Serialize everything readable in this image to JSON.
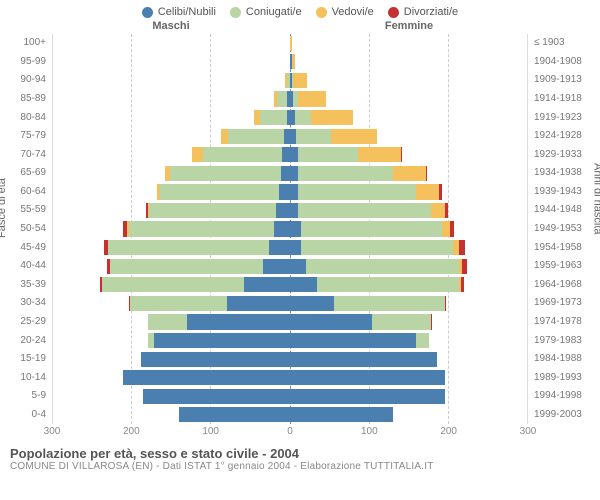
{
  "chart": {
    "type": "population-pyramid",
    "legend": [
      {
        "label": "Celibi/Nubili",
        "color": "#4a7fb0"
      },
      {
        "label": "Coniugati/e",
        "color": "#b9d4a5"
      },
      {
        "label": "Vedovi/e",
        "color": "#f5c15d"
      },
      {
        "label": "Divorziati/e",
        "color": "#c73030"
      }
    ],
    "header_left": "Maschi",
    "header_right": "Femmine",
    "yaxis_left_title": "Fasce di età",
    "yaxis_right_title": "Anni di nascita",
    "xmax": 300,
    "xticks": [
      300,
      200,
      100,
      0,
      100,
      200,
      300
    ],
    "age_labels": [
      "100+",
      "95-99",
      "90-94",
      "85-89",
      "80-84",
      "75-79",
      "70-74",
      "65-69",
      "60-64",
      "55-59",
      "50-54",
      "45-49",
      "40-44",
      "35-39",
      "30-34",
      "25-29",
      "20-24",
      "15-19",
      "10-14",
      "5-9",
      "0-4"
    ],
    "year_labels": [
      "≤ 1903",
      "1904-1908",
      "1909-1913",
      "1914-1918",
      "1919-1923",
      "1924-1928",
      "1929-1933",
      "1934-1938",
      "1939-1943",
      "1944-1948",
      "1949-1953",
      "1954-1958",
      "1959-1963",
      "1964-1968",
      "1969-1973",
      "1974-1978",
      "1979-1983",
      "1984-1988",
      "1989-1993",
      "1994-1998",
      "1999-2003"
    ],
    "rows": [
      {
        "m": {
          "c": 0,
          "s": 0,
          "v": 0,
          "d": 0
        },
        "f": {
          "c": 0,
          "s": 0,
          "v": 2,
          "d": 0
        }
      },
      {
        "m": {
          "c": 0,
          "s": 0,
          "v": 0,
          "d": 0
        },
        "f": {
          "c": 2,
          "s": 0,
          "v": 4,
          "d": 0
        }
      },
      {
        "m": {
          "c": 0,
          "s": 4,
          "v": 2,
          "d": 0
        },
        "f": {
          "c": 2,
          "s": 2,
          "v": 18,
          "d": 0
        }
      },
      {
        "m": {
          "c": 4,
          "s": 12,
          "v": 4,
          "d": 0
        },
        "f": {
          "c": 4,
          "s": 6,
          "v": 36,
          "d": 0
        }
      },
      {
        "m": {
          "c": 4,
          "s": 34,
          "v": 8,
          "d": 0
        },
        "f": {
          "c": 6,
          "s": 20,
          "v": 54,
          "d": 0
        }
      },
      {
        "m": {
          "c": 8,
          "s": 70,
          "v": 10,
          "d": 0
        },
        "f": {
          "c": 8,
          "s": 44,
          "v": 58,
          "d": 0
        }
      },
      {
        "m": {
          "c": 10,
          "s": 100,
          "v": 14,
          "d": 0
        },
        "f": {
          "c": 10,
          "s": 76,
          "v": 54,
          "d": 2
        }
      },
      {
        "m": {
          "c": 12,
          "s": 140,
          "v": 6,
          "d": 0
        },
        "f": {
          "c": 10,
          "s": 120,
          "v": 42,
          "d": 2
        }
      },
      {
        "m": {
          "c": 14,
          "s": 150,
          "v": 4,
          "d": 0
        },
        "f": {
          "c": 10,
          "s": 150,
          "v": 28,
          "d": 4
        }
      },
      {
        "m": {
          "c": 18,
          "s": 160,
          "v": 2,
          "d": 2
        },
        "f": {
          "c": 10,
          "s": 168,
          "v": 18,
          "d": 4
        }
      },
      {
        "m": {
          "c": 20,
          "s": 184,
          "v": 2,
          "d": 6
        },
        "f": {
          "c": 14,
          "s": 178,
          "v": 10,
          "d": 6
        }
      },
      {
        "m": {
          "c": 26,
          "s": 204,
          "v": 0,
          "d": 6
        },
        "f": {
          "c": 14,
          "s": 192,
          "v": 8,
          "d": 8
        }
      },
      {
        "m": {
          "c": 34,
          "s": 194,
          "v": 0,
          "d": 4
        },
        "f": {
          "c": 20,
          "s": 194,
          "v": 4,
          "d": 6
        }
      },
      {
        "m": {
          "c": 58,
          "s": 180,
          "v": 0,
          "d": 2
        },
        "f": {
          "c": 34,
          "s": 180,
          "v": 2,
          "d": 4
        }
      },
      {
        "m": {
          "c": 80,
          "s": 122,
          "v": 0,
          "d": 2
        },
        "f": {
          "c": 56,
          "s": 140,
          "v": 0,
          "d": 2
        }
      },
      {
        "m": {
          "c": 130,
          "s": 50,
          "v": 0,
          "d": 0
        },
        "f": {
          "c": 104,
          "s": 74,
          "v": 0,
          "d": 2
        }
      },
      {
        "m": {
          "c": 172,
          "s": 8,
          "v": 0,
          "d": 0
        },
        "f": {
          "c": 160,
          "s": 16,
          "v": 0,
          "d": 0
        }
      },
      {
        "m": {
          "c": 188,
          "s": 0,
          "v": 0,
          "d": 0
        },
        "f": {
          "c": 186,
          "s": 0,
          "v": 0,
          "d": 0
        }
      },
      {
        "m": {
          "c": 212,
          "s": 0,
          "v": 0,
          "d": 0
        },
        "f": {
          "c": 196,
          "s": 0,
          "v": 0,
          "d": 0
        }
      },
      {
        "m": {
          "c": 186,
          "s": 0,
          "v": 0,
          "d": 0
        },
        "f": {
          "c": 196,
          "s": 0,
          "v": 0,
          "d": 0
        }
      },
      {
        "m": {
          "c": 140,
          "s": 0,
          "v": 0,
          "d": 0
        },
        "f": {
          "c": 130,
          "s": 0,
          "v": 0,
          "d": 0
        }
      }
    ],
    "seg_colors": {
      "c": "#4a7fb0",
      "s": "#b9d4a5",
      "v": "#f5c15d",
      "d": "#c73030"
    },
    "background": "#ffffff",
    "grid_color": "#cccccc"
  },
  "footer": {
    "title": "Popolazione per età, sesso e stato civile - 2004",
    "subtitle": "COMUNE DI VILLAROSA (EN) - Dati ISTAT 1° gennaio 2004 - Elaborazione TUTTITALIA.IT"
  }
}
